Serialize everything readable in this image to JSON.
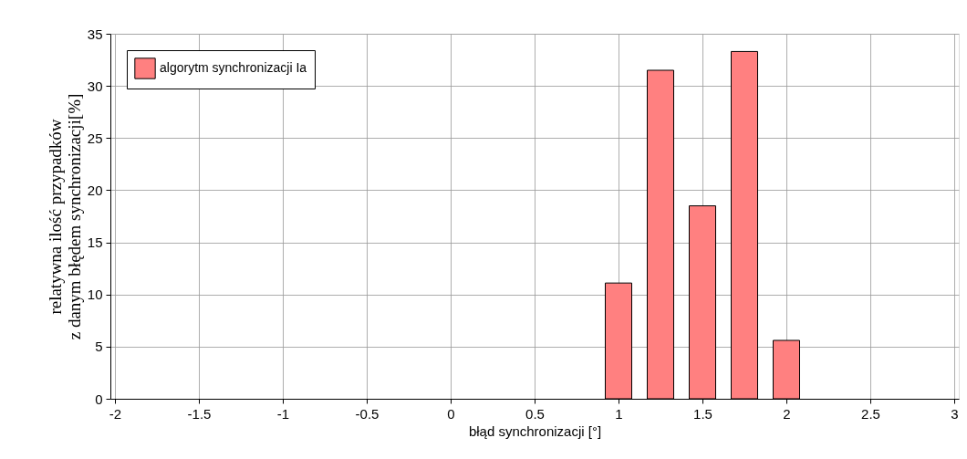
{
  "chart_data": {
    "type": "bar",
    "xlabel": "błąd synchronizacji [°]",
    "ylabel": "relatywna ilość przypadków\nz danym błędem synchronizacji[%]",
    "x": [
      1,
      1.25,
      1.5,
      1.75,
      2
    ],
    "series": [
      {
        "name": "algorytm synchronizacji Ia",
        "color": "#ff8080",
        "values": [
          11.1,
          31.5,
          18.5,
          33.3,
          5.6
        ]
      }
    ],
    "xlim": [
      -2,
      3
    ],
    "xticks": [
      -2,
      -1.5,
      -1,
      -0.5,
      0,
      0.5,
      1,
      1.5,
      2,
      2.5,
      3
    ],
    "ylim": [
      0,
      35
    ],
    "yticks": [
      0,
      5,
      10,
      15,
      20,
      25,
      30,
      35
    ],
    "grid": true,
    "legend": "top left"
  }
}
